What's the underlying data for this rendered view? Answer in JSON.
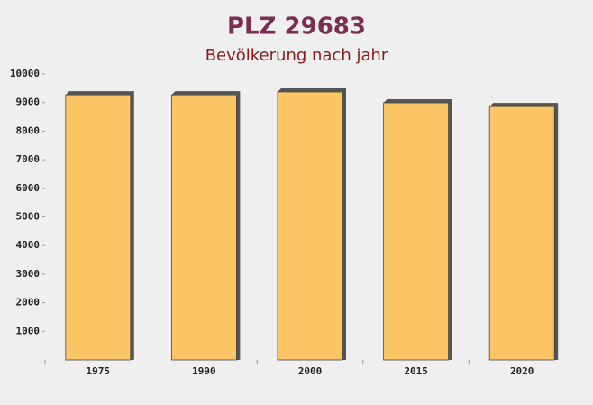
{
  "chart_data": {
    "type": "bar",
    "title": "PLZ 29683",
    "subtitle": "Bevölkerung nach jahr",
    "categories": [
      "1975",
      "1990",
      "2000",
      "2015",
      "2020"
    ],
    "values": [
      9270,
      9270,
      9370,
      8990,
      8860
    ],
    "color": "#fcc566",
    "ylim": [
      0,
      10000
    ],
    "yticks": [
      1000,
      2000,
      3000,
      4000,
      5000,
      6000,
      7000,
      8000,
      9000,
      10000
    ]
  }
}
